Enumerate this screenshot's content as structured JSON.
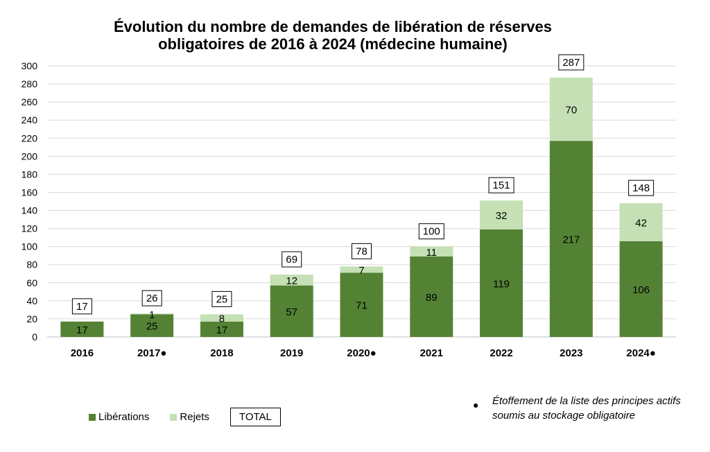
{
  "chart_data": {
    "type": "bar",
    "stacked": true,
    "title_line1": "Évolution du nombre de demandes de libération de réserves",
    "title_line2": "obligatoires de 2016 à 2024 (médecine humaine)",
    "categories": [
      "2016",
      "2017●",
      "2018",
      "2019",
      "2020●",
      "2021",
      "2022",
      "2023",
      "2024●"
    ],
    "series": [
      {
        "name": "Libérations",
        "color": "#548235",
        "values": [
          17,
          25,
          17,
          57,
          71,
          89,
          119,
          217,
          106
        ]
      },
      {
        "name": "Rejets",
        "color": "#c5e0b4",
        "values": [
          null,
          1,
          8,
          12,
          7,
          11,
          32,
          70,
          42
        ]
      }
    ],
    "totals": [
      17,
      26,
      25,
      69,
      78,
      100,
      151,
      287,
      148
    ],
    "total_label": "TOTAL",
    "ylim": [
      0,
      300
    ],
    "yticks": [
      0,
      20,
      40,
      60,
      80,
      100,
      120,
      140,
      160,
      180,
      200,
      220,
      240,
      260,
      280,
      300
    ],
    "grid": true,
    "legend_position": "bottom-left"
  },
  "note": {
    "bullet": "●",
    "text": "Étoffement de la liste des principes actifs soumis au stockage obligatoire"
  }
}
